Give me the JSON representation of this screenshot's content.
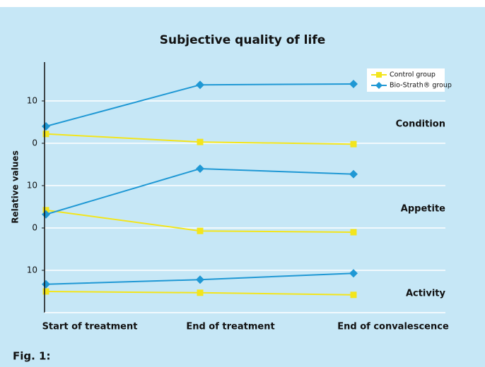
{
  "chart_data": {
    "type": "line",
    "title": "Subjective quality of life",
    "ylabel": "Relative values",
    "caption": "Fig. 1:",
    "categories": [
      "Start of treatment",
      "End of treatment",
      "End of convalescence"
    ],
    "series": [
      {
        "name": "Control group",
        "color": "#f3e51c",
        "marker": "square"
      },
      {
        "name": "Bio-Strath® group",
        "color": "#1f98d4",
        "marker": "diamond"
      }
    ],
    "legend": "upper right",
    "grid": true,
    "panels": [
      {
        "label": "Condition",
        "ylim": [
          0,
          20
        ],
        "yticks": [
          0,
          10
        ],
        "values": [
          [
            2.2,
            0.3,
            -0.2
          ],
          [
            4,
            13.8,
            14
          ]
        ]
      },
      {
        "label": "Appetite",
        "ylim": [
          0,
          20
        ],
        "yticks": [
          0,
          10
        ],
        "values": [
          [
            4.2,
            -0.7,
            -1
          ],
          [
            3.2,
            14,
            12.7
          ]
        ]
      },
      {
        "label": "Activity",
        "ylim": [
          0,
          20
        ],
        "yticks": [
          10
        ],
        "values": [
          [
            5,
            4.7,
            4.2
          ],
          [
            6.7,
            7.8,
            9.3
          ]
        ]
      }
    ]
  }
}
